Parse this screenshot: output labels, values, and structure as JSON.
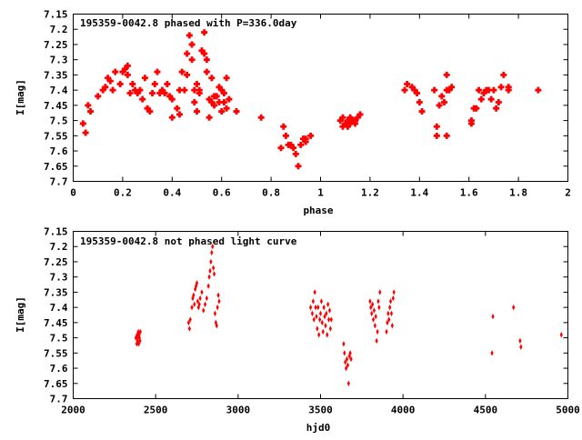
{
  "chart_data": [
    {
      "type": "scatter",
      "title": "195359-0042.8 phased with P=336.0day",
      "xlabel": "phase",
      "ylabel": "I[mag]",
      "xlim": [
        0,
        2
      ],
      "ylim": [
        7.7,
        7.15
      ],
      "y_inverted": true,
      "marker": "cross",
      "xticks": [
        "0",
        "0.2",
        "0.4",
        "0.6",
        "0.8",
        "1",
        "1.2",
        "1.4",
        "1.6",
        "1.8",
        "2"
      ],
      "yticks": [
        "7.15",
        "7.2",
        "7.25",
        "7.3",
        "7.35",
        "7.4",
        "7.45",
        "7.5",
        "7.55",
        "7.6",
        "7.65",
        "7.7"
      ],
      "color": "#ff0000",
      "series": [
        {
          "points": [
            [
              0.04,
              7.51
            ],
            [
              0.05,
              7.54
            ],
            [
              0.06,
              7.45
            ],
            [
              0.07,
              7.47
            ],
            [
              0.1,
              7.42
            ],
            [
              0.12,
              7.4
            ],
            [
              0.13,
              7.39
            ],
            [
              0.14,
              7.36
            ],
            [
              0.15,
              7.37
            ],
            [
              0.16,
              7.4
            ],
            [
              0.17,
              7.34
            ],
            [
              0.19,
              7.38
            ],
            [
              0.2,
              7.34
            ],
            [
              0.21,
              7.33
            ],
            [
              0.22,
              7.32
            ],
            [
              0.22,
              7.35
            ],
            [
              0.23,
              7.41
            ],
            [
              0.24,
              7.38
            ],
            [
              0.25,
              7.4
            ],
            [
              0.26,
              7.41
            ],
            [
              0.27,
              7.4
            ],
            [
              0.28,
              7.43
            ],
            [
              0.29,
              7.36
            ],
            [
              0.3,
              7.46
            ],
            [
              0.31,
              7.47
            ],
            [
              0.32,
              7.41
            ],
            [
              0.33,
              7.38
            ],
            [
              0.34,
              7.34
            ],
            [
              0.35,
              7.41
            ],
            [
              0.36,
              7.4
            ],
            [
              0.37,
              7.41
            ],
            [
              0.38,
              7.38
            ],
            [
              0.39,
              7.42
            ],
            [
              0.4,
              7.43
            ],
            [
              0.4,
              7.49
            ],
            [
              0.42,
              7.46
            ],
            [
              0.43,
              7.48
            ],
            [
              0.43,
              7.4
            ],
            [
              0.44,
              7.34
            ],
            [
              0.45,
              7.4
            ],
            [
              0.46,
              7.35
            ],
            [
              0.46,
              7.28
            ],
            [
              0.47,
              7.22
            ],
            [
              0.48,
              7.25
            ],
            [
              0.48,
              7.3
            ],
            [
              0.49,
              7.4
            ],
            [
              0.49,
              7.44
            ],
            [
              0.5,
              7.47
            ],
            [
              0.5,
              7.38
            ],
            [
              0.51,
              7.4
            ],
            [
              0.51,
              7.41
            ],
            [
              0.52,
              7.27
            ],
            [
              0.53,
              7.21
            ],
            [
              0.53,
              7.28
            ],
            [
              0.54,
              7.3
            ],
            [
              0.54,
              7.34
            ],
            [
              0.55,
              7.43
            ],
            [
              0.55,
              7.49
            ],
            [
              0.56,
              7.36
            ],
            [
              0.56,
              7.44
            ],
            [
              0.57,
              7.42
            ],
            [
              0.57,
              7.45
            ],
            [
              0.58,
              7.42
            ],
            [
              0.59,
              7.44
            ],
            [
              0.59,
              7.39
            ],
            [
              0.6,
              7.4
            ],
            [
              0.6,
              7.47
            ],
            [
              0.61,
              7.41
            ],
            [
              0.61,
              7.44
            ],
            [
              0.62,
              7.46
            ],
            [
              0.62,
              7.36
            ],
            [
              0.63,
              7.43
            ],
            [
              0.66,
              7.47
            ],
            [
              0.76,
              7.49
            ],
            [
              0.84,
              7.59
            ],
            [
              0.85,
              7.52
            ],
            [
              0.86,
              7.55
            ],
            [
              0.87,
              7.58
            ],
            [
              0.88,
              7.58
            ],
            [
              0.89,
              7.59
            ],
            [
              0.9,
              7.61
            ],
            [
              0.91,
              7.65
            ],
            [
              0.92,
              7.58
            ],
            [
              0.93,
              7.56
            ],
            [
              0.94,
              7.57
            ],
            [
              0.94,
              7.56
            ],
            [
              0.96,
              7.55
            ],
            [
              1.08,
              7.5
            ],
            [
              1.09,
              7.52
            ],
            [
              1.09,
              7.49
            ],
            [
              1.1,
              7.51
            ],
            [
              1.11,
              7.5
            ],
            [
              1.11,
              7.52
            ],
            [
              1.12,
              7.51
            ],
            [
              1.12,
              7.49
            ],
            [
              1.13,
              7.5
            ],
            [
              1.14,
              7.51
            ],
            [
              1.14,
              7.5
            ],
            [
              1.15,
              7.49
            ],
            [
              1.16,
              7.48
            ],
            [
              1.34,
              7.4
            ],
            [
              1.35,
              7.38
            ],
            [
              1.37,
              7.39
            ],
            [
              1.38,
              7.4
            ],
            [
              1.39,
              7.41
            ],
            [
              1.4,
              7.44
            ],
            [
              1.41,
              7.47
            ],
            [
              1.46,
              7.4
            ],
            [
              1.47,
              7.52
            ],
            [
              1.47,
              7.55
            ],
            [
              1.48,
              7.45
            ],
            [
              1.49,
              7.42
            ],
            [
              1.5,
              7.44
            ],
            [
              1.51,
              7.35
            ],
            [
              1.51,
              7.4
            ],
            [
              1.52,
              7.4
            ],
            [
              1.53,
              7.39
            ],
            [
              1.51,
              7.55
            ],
            [
              1.61,
              7.5
            ],
            [
              1.61,
              7.51
            ],
            [
              1.62,
              7.46
            ],
            [
              1.63,
              7.46
            ],
            [
              1.64,
              7.4
            ],
            [
              1.65,
              7.43
            ],
            [
              1.66,
              7.41
            ],
            [
              1.67,
              7.4
            ],
            [
              1.68,
              7.4
            ],
            [
              1.69,
              7.43
            ],
            [
              1.7,
              7.4
            ],
            [
              1.71,
              7.46
            ],
            [
              1.72,
              7.44
            ],
            [
              1.73,
              7.39
            ],
            [
              1.74,
              7.35
            ],
            [
              1.76,
              7.39
            ],
            [
              1.76,
              7.4
            ],
            [
              1.88,
              7.4
            ]
          ]
        }
      ]
    },
    {
      "type": "scatter",
      "title": "195359-0042.8 not phased light curve",
      "xlabel": "hjd0",
      "ylabel": "I[mag]",
      "xlim": [
        2000,
        5000
      ],
      "ylim": [
        7.7,
        7.15
      ],
      "y_inverted": true,
      "marker": "diamond",
      "xticks": [
        "2000",
        "2500",
        "3000",
        "3500",
        "4000",
        "4500",
        "5000"
      ],
      "yticks": [
        "7.15",
        "7.2",
        "7.25",
        "7.3",
        "7.35",
        "7.4",
        "7.45",
        "7.5",
        "7.55",
        "7.6",
        "7.65",
        "7.7"
      ],
      "color": "#ff0000",
      "series": [
        {
          "points": [
            [
              2380,
              7.5
            ],
            [
              2385,
              7.52
            ],
            [
              2388,
              7.49
            ],
            [
              2390,
              7.51
            ],
            [
              2392,
              7.5
            ],
            [
              2395,
              7.48
            ],
            [
              2397,
              7.52
            ],
            [
              2400,
              7.49
            ],
            [
              2402,
              7.5
            ],
            [
              2405,
              7.51
            ],
            [
              2407,
              7.48
            ],
            [
              2700,
              7.45
            ],
            [
              2705,
              7.47
            ],
            [
              2710,
              7.44
            ],
            [
              2720,
              7.4
            ],
            [
              2725,
              7.37
            ],
            [
              2730,
              7.36
            ],
            [
              2735,
              7.39
            ],
            [
              2740,
              7.34
            ],
            [
              2745,
              7.33
            ],
            [
              2750,
              7.32
            ],
            [
              2755,
              7.38
            ],
            [
              2760,
              7.4
            ],
            [
              2765,
              7.39
            ],
            [
              2770,
              7.37
            ],
            [
              2780,
              7.35
            ],
            [
              2790,
              7.41
            ],
            [
              2800,
              7.39
            ],
            [
              2810,
              7.37
            ],
            [
              2820,
              7.33
            ],
            [
              2825,
              7.3
            ],
            [
              2830,
              7.28
            ],
            [
              2835,
              7.25
            ],
            [
              2840,
              7.22
            ],
            [
              2845,
              7.2
            ],
            [
              2850,
              7.27
            ],
            [
              2855,
              7.29
            ],
            [
              2860,
              7.42
            ],
            [
              2865,
              7.45
            ],
            [
              2870,
              7.46
            ],
            [
              2875,
              7.4
            ],
            [
              2880,
              7.36
            ],
            [
              2885,
              7.38
            ],
            [
              3440,
              7.4
            ],
            [
              3450,
              7.42
            ],
            [
              3455,
              7.38
            ],
            [
              3460,
              7.44
            ],
            [
              3465,
              7.35
            ],
            [
              3470,
              7.4
            ],
            [
              3475,
              7.43
            ],
            [
              3480,
              7.47
            ],
            [
              3485,
              7.4
            ],
            [
              3490,
              7.49
            ],
            [
              3495,
              7.44
            ],
            [
              3500,
              7.42
            ],
            [
              3505,
              7.38
            ],
            [
              3510,
              7.45
            ],
            [
              3515,
              7.48
            ],
            [
              3520,
              7.4
            ],
            [
              3525,
              7.43
            ],
            [
              3530,
              7.46
            ],
            [
              3535,
              7.42
            ],
            [
              3540,
              7.49
            ],
            [
              3545,
              7.39
            ],
            [
              3550,
              7.44
            ],
            [
              3555,
              7.41
            ],
            [
              3560,
              7.47
            ],
            [
              3565,
              7.44
            ],
            [
              3640,
              7.52
            ],
            [
              3645,
              7.55
            ],
            [
              3650,
              7.58
            ],
            [
              3655,
              7.6
            ],
            [
              3660,
              7.57
            ],
            [
              3665,
              7.59
            ],
            [
              3670,
              7.65
            ],
            [
              3675,
              7.56
            ],
            [
              3680,
              7.55
            ],
            [
              3685,
              7.57
            ],
            [
              3800,
              7.38
            ],
            [
              3805,
              7.4
            ],
            [
              3810,
              7.42
            ],
            [
              3815,
              7.39
            ],
            [
              3820,
              7.44
            ],
            [
              3825,
              7.41
            ],
            [
              3830,
              7.46
            ],
            [
              3835,
              7.43
            ],
            [
              3840,
              7.51
            ],
            [
              3845,
              7.48
            ],
            [
              3850,
              7.38
            ],
            [
              3855,
              7.4
            ],
            [
              3860,
              7.35
            ],
            [
              3900,
              7.48
            ],
            [
              3905,
              7.45
            ],
            [
              3910,
              7.42
            ],
            [
              3915,
              7.44
            ],
            [
              3920,
              7.4
            ],
            [
              3925,
              7.38
            ],
            [
              3930,
              7.42
            ],
            [
              3935,
              7.46
            ],
            [
              3940,
              7.37
            ],
            [
              3945,
              7.35
            ],
            [
              4540,
              7.55
            ],
            [
              4545,
              7.43
            ],
            [
              4670,
              7.4
            ],
            [
              4710,
              7.51
            ],
            [
              4715,
              7.53
            ],
            [
              4960,
              7.49
            ]
          ]
        }
      ]
    }
  ]
}
